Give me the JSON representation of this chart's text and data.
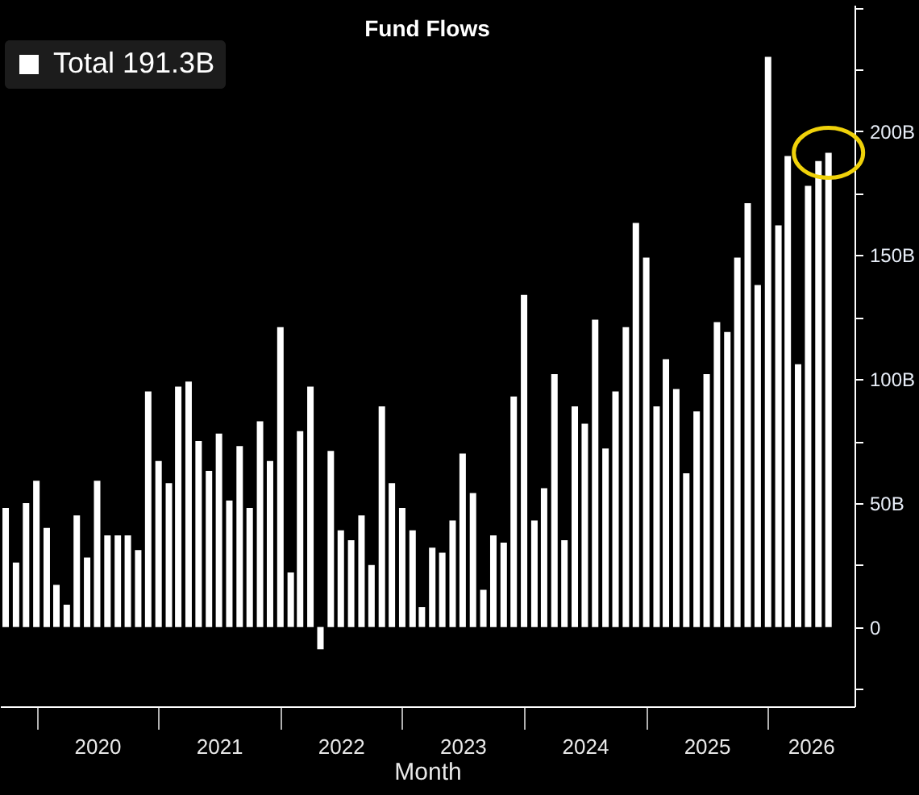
{
  "chart_data": {
    "type": "bar",
    "title": "Fund Flows",
    "xlabel": "Month",
    "x": [
      "2019-10",
      "2019-11",
      "2019-12",
      "2020-01",
      "2020-02",
      "2020-03",
      "2020-04",
      "2020-05",
      "2020-06",
      "2020-07",
      "2020-08",
      "2020-09",
      "2020-10",
      "2020-11",
      "2020-12",
      "2021-01",
      "2021-02",
      "2021-03",
      "2021-04",
      "2021-05",
      "2021-06",
      "2021-07",
      "2021-08",
      "2021-09",
      "2021-10",
      "2021-11",
      "2021-12",
      "2022-01",
      "2022-02",
      "2022-03",
      "2022-04",
      "2022-05",
      "2022-06",
      "2022-07",
      "2022-08",
      "2022-09",
      "2022-10",
      "2022-11",
      "2022-12",
      "2023-01",
      "2023-02",
      "2023-03",
      "2023-04",
      "2023-05",
      "2023-06",
      "2023-07",
      "2023-08",
      "2023-09",
      "2023-10",
      "2023-11",
      "2023-12",
      "2024-01",
      "2024-02",
      "2024-03",
      "2024-04",
      "2024-05",
      "2024-06",
      "2024-07",
      "2024-08",
      "2024-09",
      "2024-10",
      "2024-11",
      "2024-12",
      "2025-01",
      "2025-02",
      "2025-03",
      "2025-04",
      "2025-05",
      "2025-06",
      "2025-07",
      "2025-08",
      "2025-09",
      "2025-10",
      "2025-11",
      "2025-12",
      "2026-01",
      "2026-02",
      "2026-03",
      "2026-04",
      "2026-05",
      "2026-06",
      "2026-07"
    ],
    "series": [
      {
        "name": "Total 191.3B",
        "color": "#ffffff",
        "values": [
          48,
          26,
          50,
          59,
          40,
          17,
          9,
          45,
          28,
          59,
          37,
          37,
          37,
          31,
          95,
          67,
          58,
          97,
          99,
          75,
          63,
          78,
          51,
          73,
          48,
          83,
          67,
          121,
          22,
          79,
          97,
          -9,
          71,
          39,
          35,
          45,
          25,
          89,
          58,
          48,
          39,
          8,
          32,
          30,
          43,
          70,
          54,
          15,
          37,
          34,
          93,
          134,
          43,
          56,
          102,
          35,
          89,
          82,
          124,
          72,
          95,
          121,
          163,
          149,
          89,
          108,
          96,
          62,
          87,
          102,
          123,
          119,
          149,
          171,
          138,
          230,
          162,
          190,
          106,
          178,
          188,
          191.3
        ]
      }
    ],
    "xlim": [
      "2019-09-14",
      "2026-09-17"
    ],
    "xticks": [
      {
        "value": "2020-01",
        "label": null
      },
      {
        "value": "2020-07-01",
        "label": "2020"
      },
      {
        "value": "2021-01",
        "label": null
      },
      {
        "value": "2021-07-01",
        "label": "2021"
      },
      {
        "value": "2022-01",
        "label": null
      },
      {
        "value": "2022-07-01",
        "label": "2022"
      },
      {
        "value": "2023-01",
        "label": null
      },
      {
        "value": "2023-07-01",
        "label": "2023"
      },
      {
        "value": "2024-01",
        "label": null
      },
      {
        "value": "2024-07-01",
        "label": "2024"
      },
      {
        "value": "2025-01",
        "label": null
      },
      {
        "value": "2025-07-01",
        "label": "2025"
      },
      {
        "value": "2026-01",
        "label": null
      },
      {
        "value": "2026-05-09",
        "label": "2026"
      }
    ],
    "ylim": [
      -32,
      251
    ],
    "yticks": [
      {
        "value": -25,
        "label": null
      },
      0,
      {
        "value": 25,
        "label": null
      },
      {
        "value": 50,
        "label": "50B"
      },
      {
        "value": 75,
        "label": null
      },
      {
        "value": 100,
        "label": "100B"
      },
      {
        "value": 125,
        "label": null
      },
      {
        "value": 150,
        "label": "150B"
      },
      {
        "value": 175,
        "label": null
      },
      {
        "value": 200,
        "label": "200B"
      },
      {
        "value": 225,
        "label": null
      },
      {
        "value": 250,
        "label": null
      }
    ],
    "legend": "top left"
  }
}
